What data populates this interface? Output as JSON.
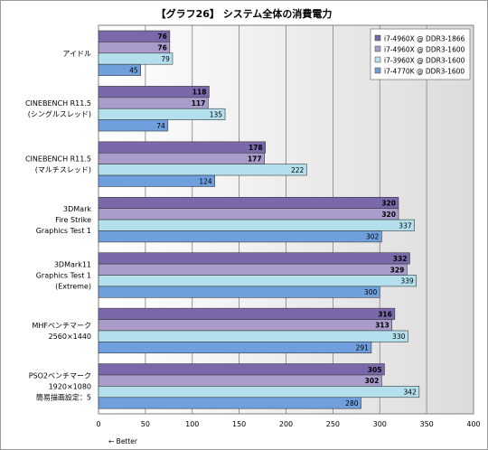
{
  "chart_data": {
    "type": "bar",
    "orientation": "horizontal",
    "title": "【グラフ26】 システム全体の消費電力",
    "categories": [
      [
        "アイドル"
      ],
      [
        "CINEBENCH R11.5",
        "(シングルスレッド)"
      ],
      [
        "CINEBENCH R11.5",
        "(マルチスレッド)"
      ],
      [
        "3DMark",
        "Fire Strike",
        "Graphics Test 1"
      ],
      [
        "3DMark11",
        "Graphics Test 1",
        "(Extreme)"
      ],
      [
        "MHFベンチマーク",
        "2560×1440"
      ],
      [
        "PSO2ベンチマーク",
        "1920×1080",
        "簡易描画設定：5"
      ]
    ],
    "series": [
      {
        "name": "i7-4960X @ DDR3-1866",
        "color": "#7b68aa",
        "values": [
          76,
          118,
          178,
          320,
          332,
          316,
          305
        ]
      },
      {
        "name": "i7-4960X @ DDR3-1600",
        "color": "#a99ccb",
        "values": [
          76,
          117,
          177,
          320,
          329,
          313,
          302
        ]
      },
      {
        "name": "i7-3960X @ DDR3-1600",
        "color": "#b4e0ee",
        "values": [
          79,
          135,
          222,
          337,
          339,
          330,
          342
        ]
      },
      {
        "name": "i7-4770K @ DDR3-1600",
        "color": "#6f9fdc",
        "values": [
          45,
          74,
          124,
          302,
          300,
          291,
          280
        ]
      }
    ],
    "xlim": [
      0,
      400
    ],
    "xticks": [
      0,
      50,
      100,
      150,
      200,
      250,
      300,
      350,
      400
    ],
    "grid": true,
    "legend": "top-right",
    "note": "← Better"
  }
}
